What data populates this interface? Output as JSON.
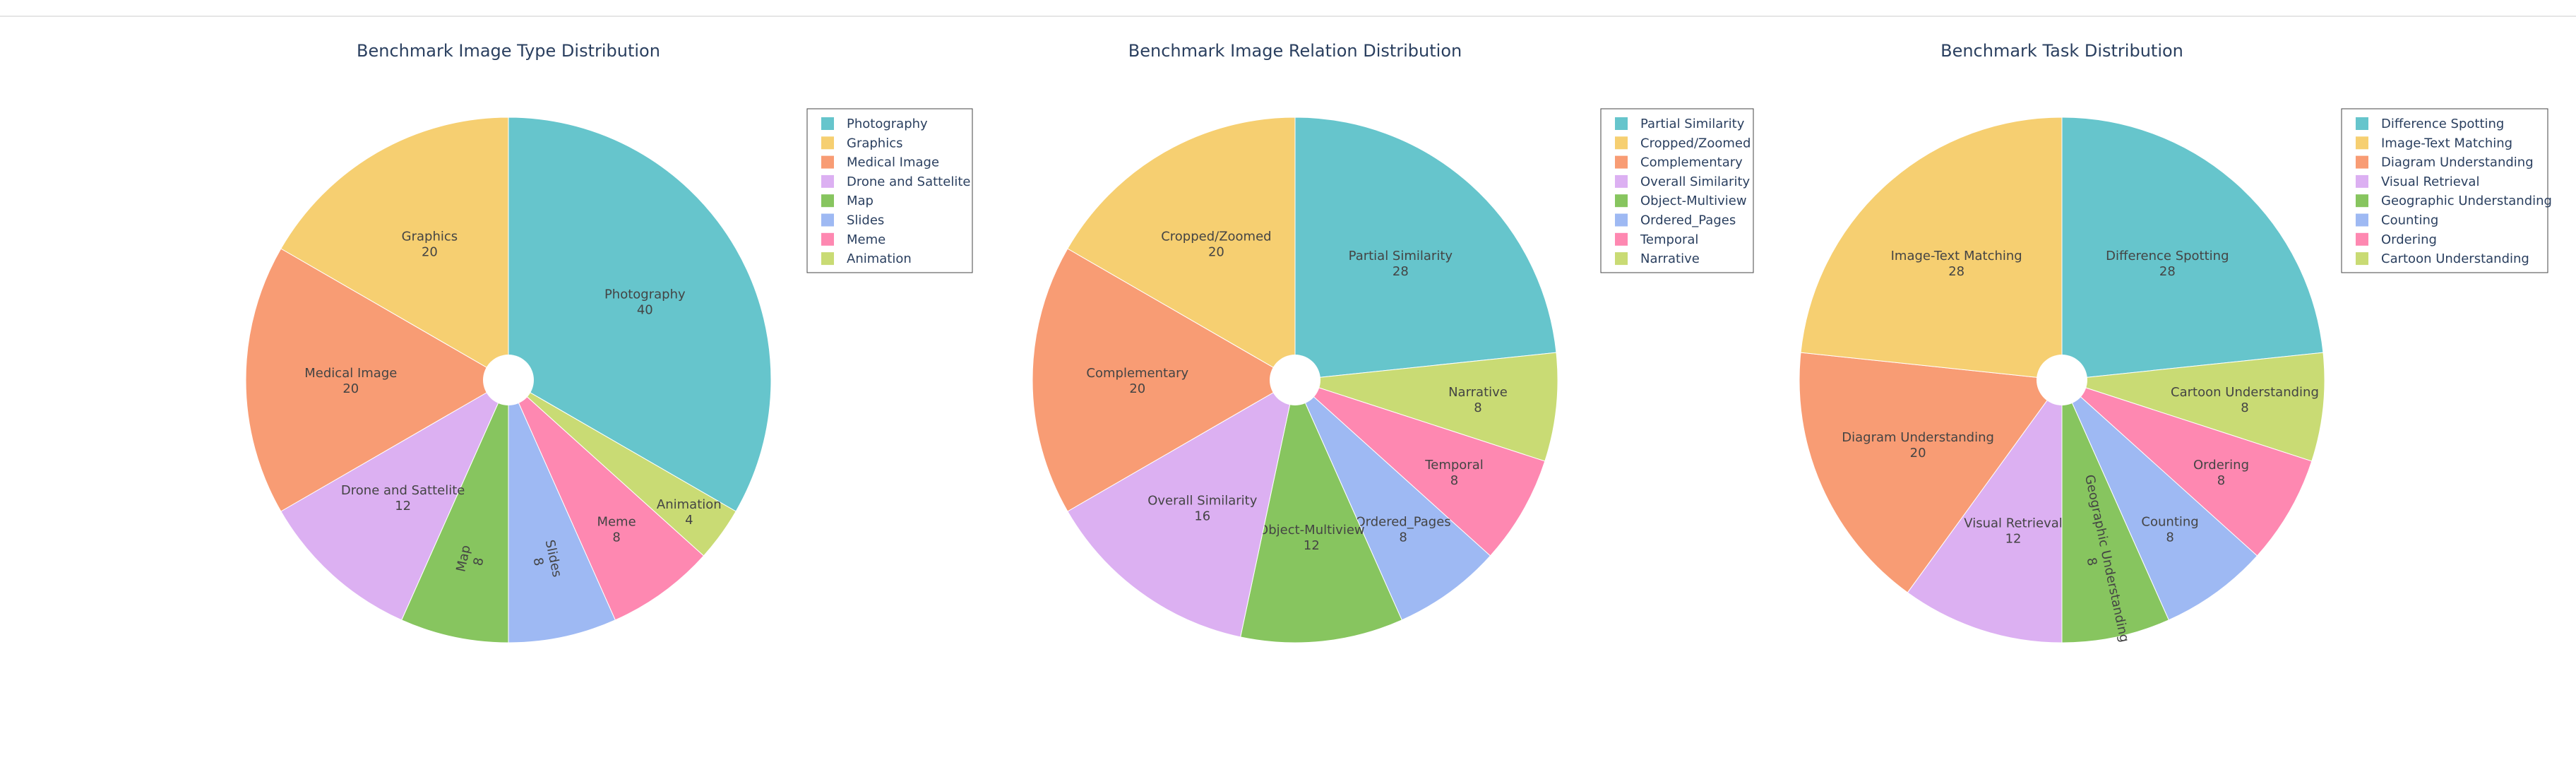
{
  "colors": [
    "#66c5cc",
    "#f6cf71",
    "#f89c74",
    "#dcb0f2",
    "#87c55f",
    "#9eb9f3",
    "#fe88b1",
    "#c9db74"
  ],
  "chart_data": [
    {
      "type": "pie",
      "title": "Benchmark Image Type Distribution",
      "labels": [
        "Photography",
        "Graphics",
        "Medical Image",
        "Drone and Sattelite",
        "Map",
        "Slides",
        "Meme",
        "Animation"
      ],
      "values": [
        40,
        20,
        20,
        12,
        8,
        8,
        8,
        4
      ],
      "slice_order": [
        "Photography",
        "Animation",
        "Meme",
        "Slides",
        "Map",
        "Drone and Sattelite",
        "Medical Image",
        "Graphics"
      ],
      "hole": true,
      "legend_position": "top-right"
    },
    {
      "type": "pie",
      "title": "Benchmark Image Relation Distribution",
      "labels": [
        "Partial Similarity",
        "Cropped/Zoomed",
        "Complementary",
        "Overall Similarity",
        "Object-Multiview",
        "Ordered_Pages",
        "Temporal",
        "Narrative"
      ],
      "values": [
        28,
        20,
        20,
        16,
        12,
        8,
        8,
        8
      ],
      "slice_order": [
        "Partial Similarity",
        "Narrative",
        "Temporal",
        "Ordered_Pages",
        "Object-Multiview",
        "Overall Similarity",
        "Complementary",
        "Cropped/Zoomed"
      ],
      "hole": true,
      "legend_position": "top-right"
    },
    {
      "type": "pie",
      "title": "Benchmark Task Distribution",
      "labels": [
        "Difference Spotting",
        "Image-Text Matching",
        "Diagram Understanding",
        "Visual Retrieval",
        "Geographic Understanding",
        "Counting",
        "Ordering",
        "Cartoon Understanding"
      ],
      "values": [
        28,
        28,
        20,
        12,
        8,
        8,
        8,
        8
      ],
      "slice_order": [
        "Difference Spotting",
        "Cartoon Understanding",
        "Ordering",
        "Counting",
        "Geographic Understanding",
        "Visual Retrieval",
        "Diagram Understanding",
        "Image-Text Matching"
      ],
      "hole": true,
      "legend_position": "top-right"
    }
  ]
}
